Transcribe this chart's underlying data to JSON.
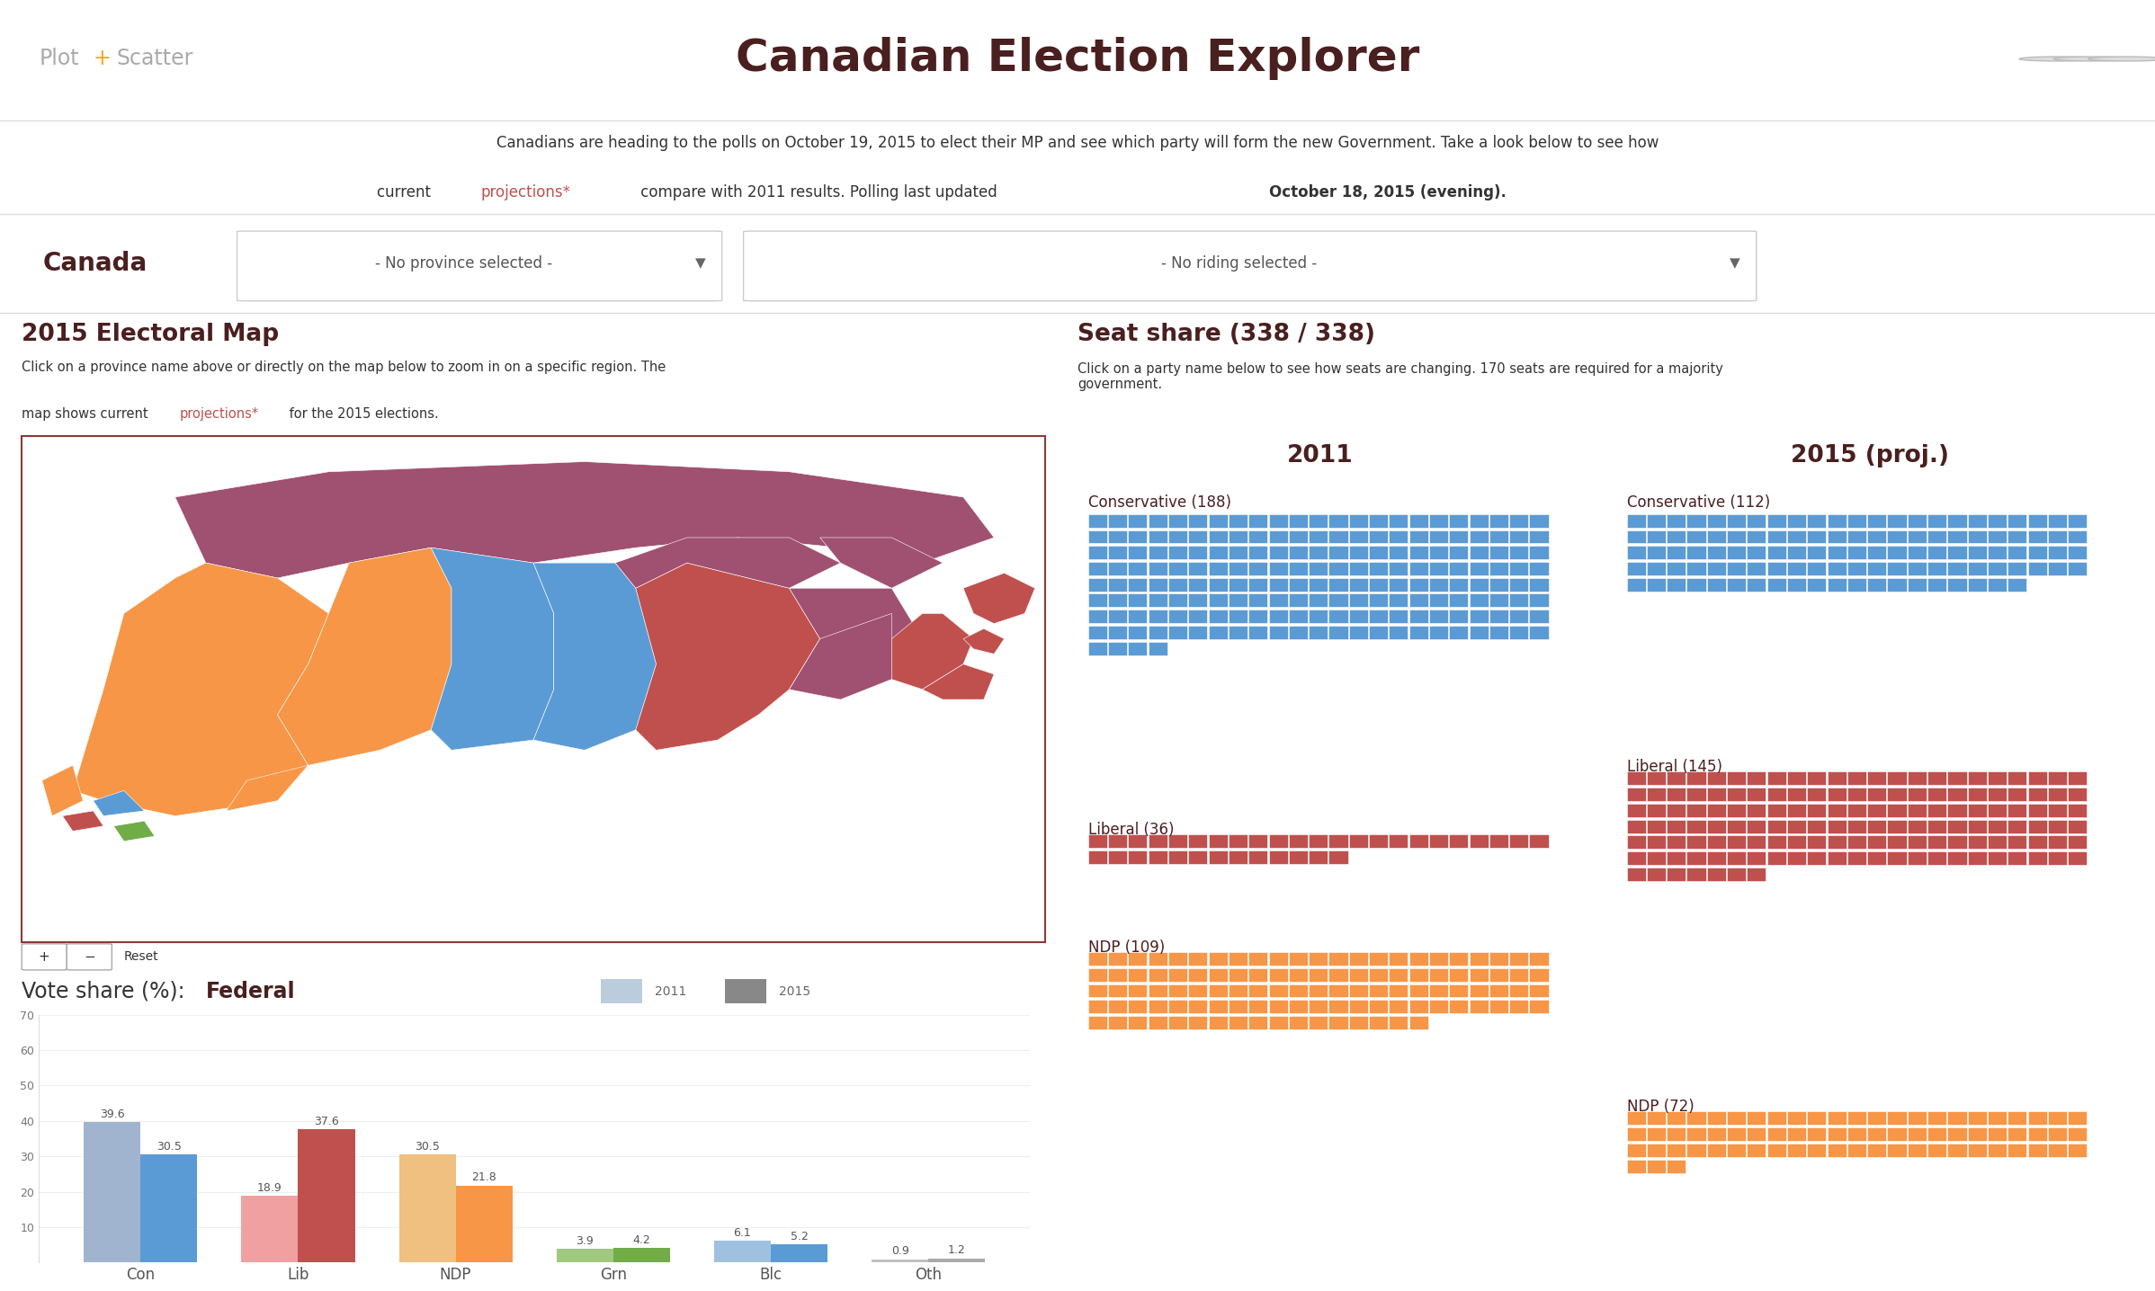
{
  "title": "Canadian Election Explorer",
  "subtitle_line1": "Canadians are heading to the polls on October 19, 2015 to elect their MP and see which party will form the new Government. Take a look below to see how",
  "subtitle_line2": "current projections* compare with 2011 results. Polling last updated",
  "subtitle_bold": "October 18, 2015 (evening).",
  "logo_plus_color": "#F5A623",
  "bg_color": "#FFFFFF",
  "title_color": "#4A1F1F",
  "subtitle_color": "#333333",
  "projection_color": "#C0504D",
  "map_section_title": "2015 Electoral Map",
  "map_desc1": "Click on a province name above or directly on the map below to zoom in on a specific region. The",
  "seat_section_title": "Seat share (338 / 338)",
  "seat_desc": "Click on a party name below to see how seats are changing. 170 seats are required for a majority\ngovernment.",
  "vote_section_title": "Vote share (%): Federal",
  "vote_parties": [
    "Con",
    "Lib",
    "NDP",
    "Grn",
    "Blc",
    "Oth"
  ],
  "vote_2011": [
    39.6,
    18.9,
    30.5,
    3.9,
    6.1,
    0.9
  ],
  "vote_2015": [
    30.5,
    37.6,
    21.8,
    4.2,
    5.2,
    1.2
  ],
  "canada_label": "Canada",
  "province_dropdown": "- No province selected -",
  "riding_dropdown": "- No riding selected -",
  "map_border_color": "#8B3A3A",
  "map_colors": {
    "conservative": "#5B9BD5",
    "liberal": "#C0504D",
    "ndp": "#F79646",
    "green": "#70AD47",
    "bloc": "#87CEFA"
  },
  "party_colors_2015": [
    "#5B9BD5",
    "#C0504D",
    "#F79646",
    "#70AD47",
    "#5B9BD5",
    "#AAAAAA"
  ],
  "party_colors_2011": [
    "#A0B4CF",
    "#F0A0A0",
    "#F0C080",
    "#A0C880",
    "#A0C0E0",
    "#C0C0C0"
  ],
  "year_2011_label": "2011",
  "year_2015_label": "2015 (proj.)",
  "con_label_2011": "Conservative (188)",
  "lib_label_2011": "Liberal (36)",
  "ndp_label_2011": "NDP (109)",
  "con_label_2015": "Conservative (112)",
  "lib_label_2015": "Liberal (145)",
  "ndp_label_2015": "NDP (72)",
  "seat_2011_con": 188,
  "seat_2011_lib": 36,
  "seat_2011_ndp": 109,
  "seat_2015_con": 112,
  "seat_2015_lib": 145,
  "seat_2015_ndp": 72
}
